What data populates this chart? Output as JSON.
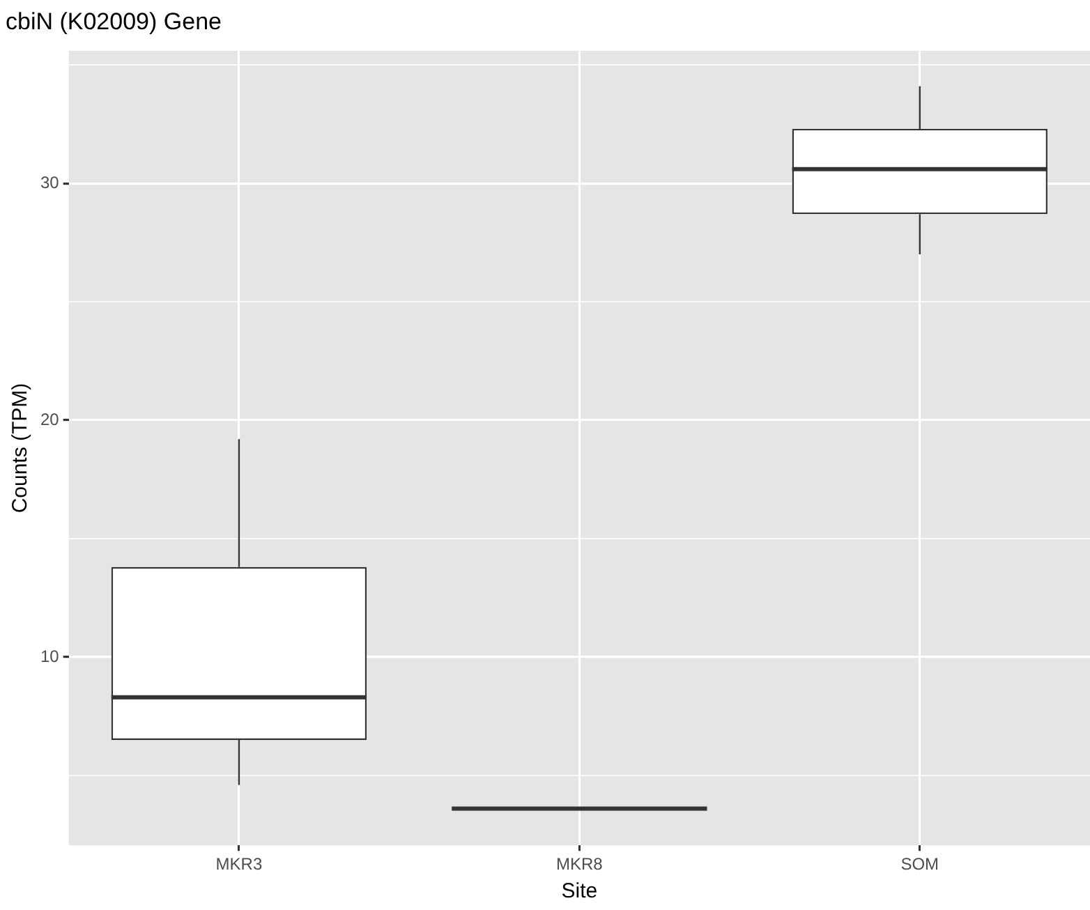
{
  "chart_data": {
    "type": "box",
    "title": "cbiN (K02009) Gene",
    "xlabel": "Site",
    "ylabel": "Counts (TPM)",
    "categories": [
      "MKR3",
      "MKR8",
      "SOM"
    ],
    "boxes": [
      {
        "low": 4.6,
        "q1": 6.5,
        "median": 8.3,
        "q3": 13.8,
        "high": 19.2
      },
      {
        "low": 3.6,
        "q1": 3.6,
        "median": 3.6,
        "q3": 3.6,
        "high": 3.6
      },
      {
        "low": 27,
        "q1": 28.7,
        "median": 30.6,
        "q3": 32.3,
        "high": 34.1
      }
    ],
    "ylim": [
      2.05,
      35.6
    ],
    "yticks": [
      {
        "value": 5,
        "label": null
      },
      10,
      {
        "value": 15,
        "label": null
      },
      20,
      {
        "value": 25,
        "label": null
      },
      30,
      {
        "value": 35,
        "label": null
      }
    ],
    "grid": true,
    "legend": false
  }
}
